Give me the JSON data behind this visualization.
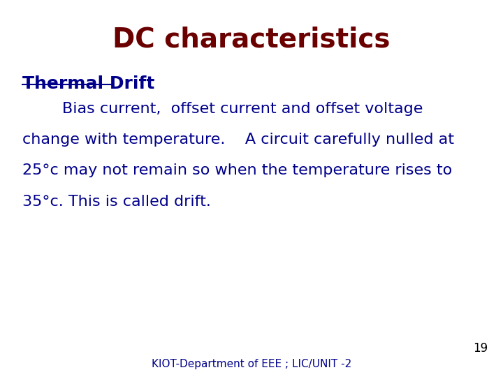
{
  "title": "DC characteristics",
  "title_color": "#6B0000",
  "title_fontsize": 28,
  "title_fontweight": "bold",
  "section_heading": "Thermal Drift",
  "section_heading_color": "#00008B",
  "section_heading_fontsize": 18,
  "section_heading_fontweight": "bold",
  "body_text_line1": "        Bias current,  offset current and offset voltage",
  "body_text_line2": "change with temperature.    A circuit carefully nulled at",
  "body_text_line3": "25°c may not remain so when the temperature rises to",
  "body_text_line4": "35°c. This is called drift.",
  "body_color": "#00008B",
  "body_fontsize": 16,
  "footer_text": "KIOT-Department of EEE ; LIC/UNIT -2",
  "footer_color": "#00008B",
  "footer_fontsize": 11,
  "page_number": "19",
  "page_number_color": "#000000",
  "page_number_fontsize": 12,
  "background_color": "#FFFFFF"
}
